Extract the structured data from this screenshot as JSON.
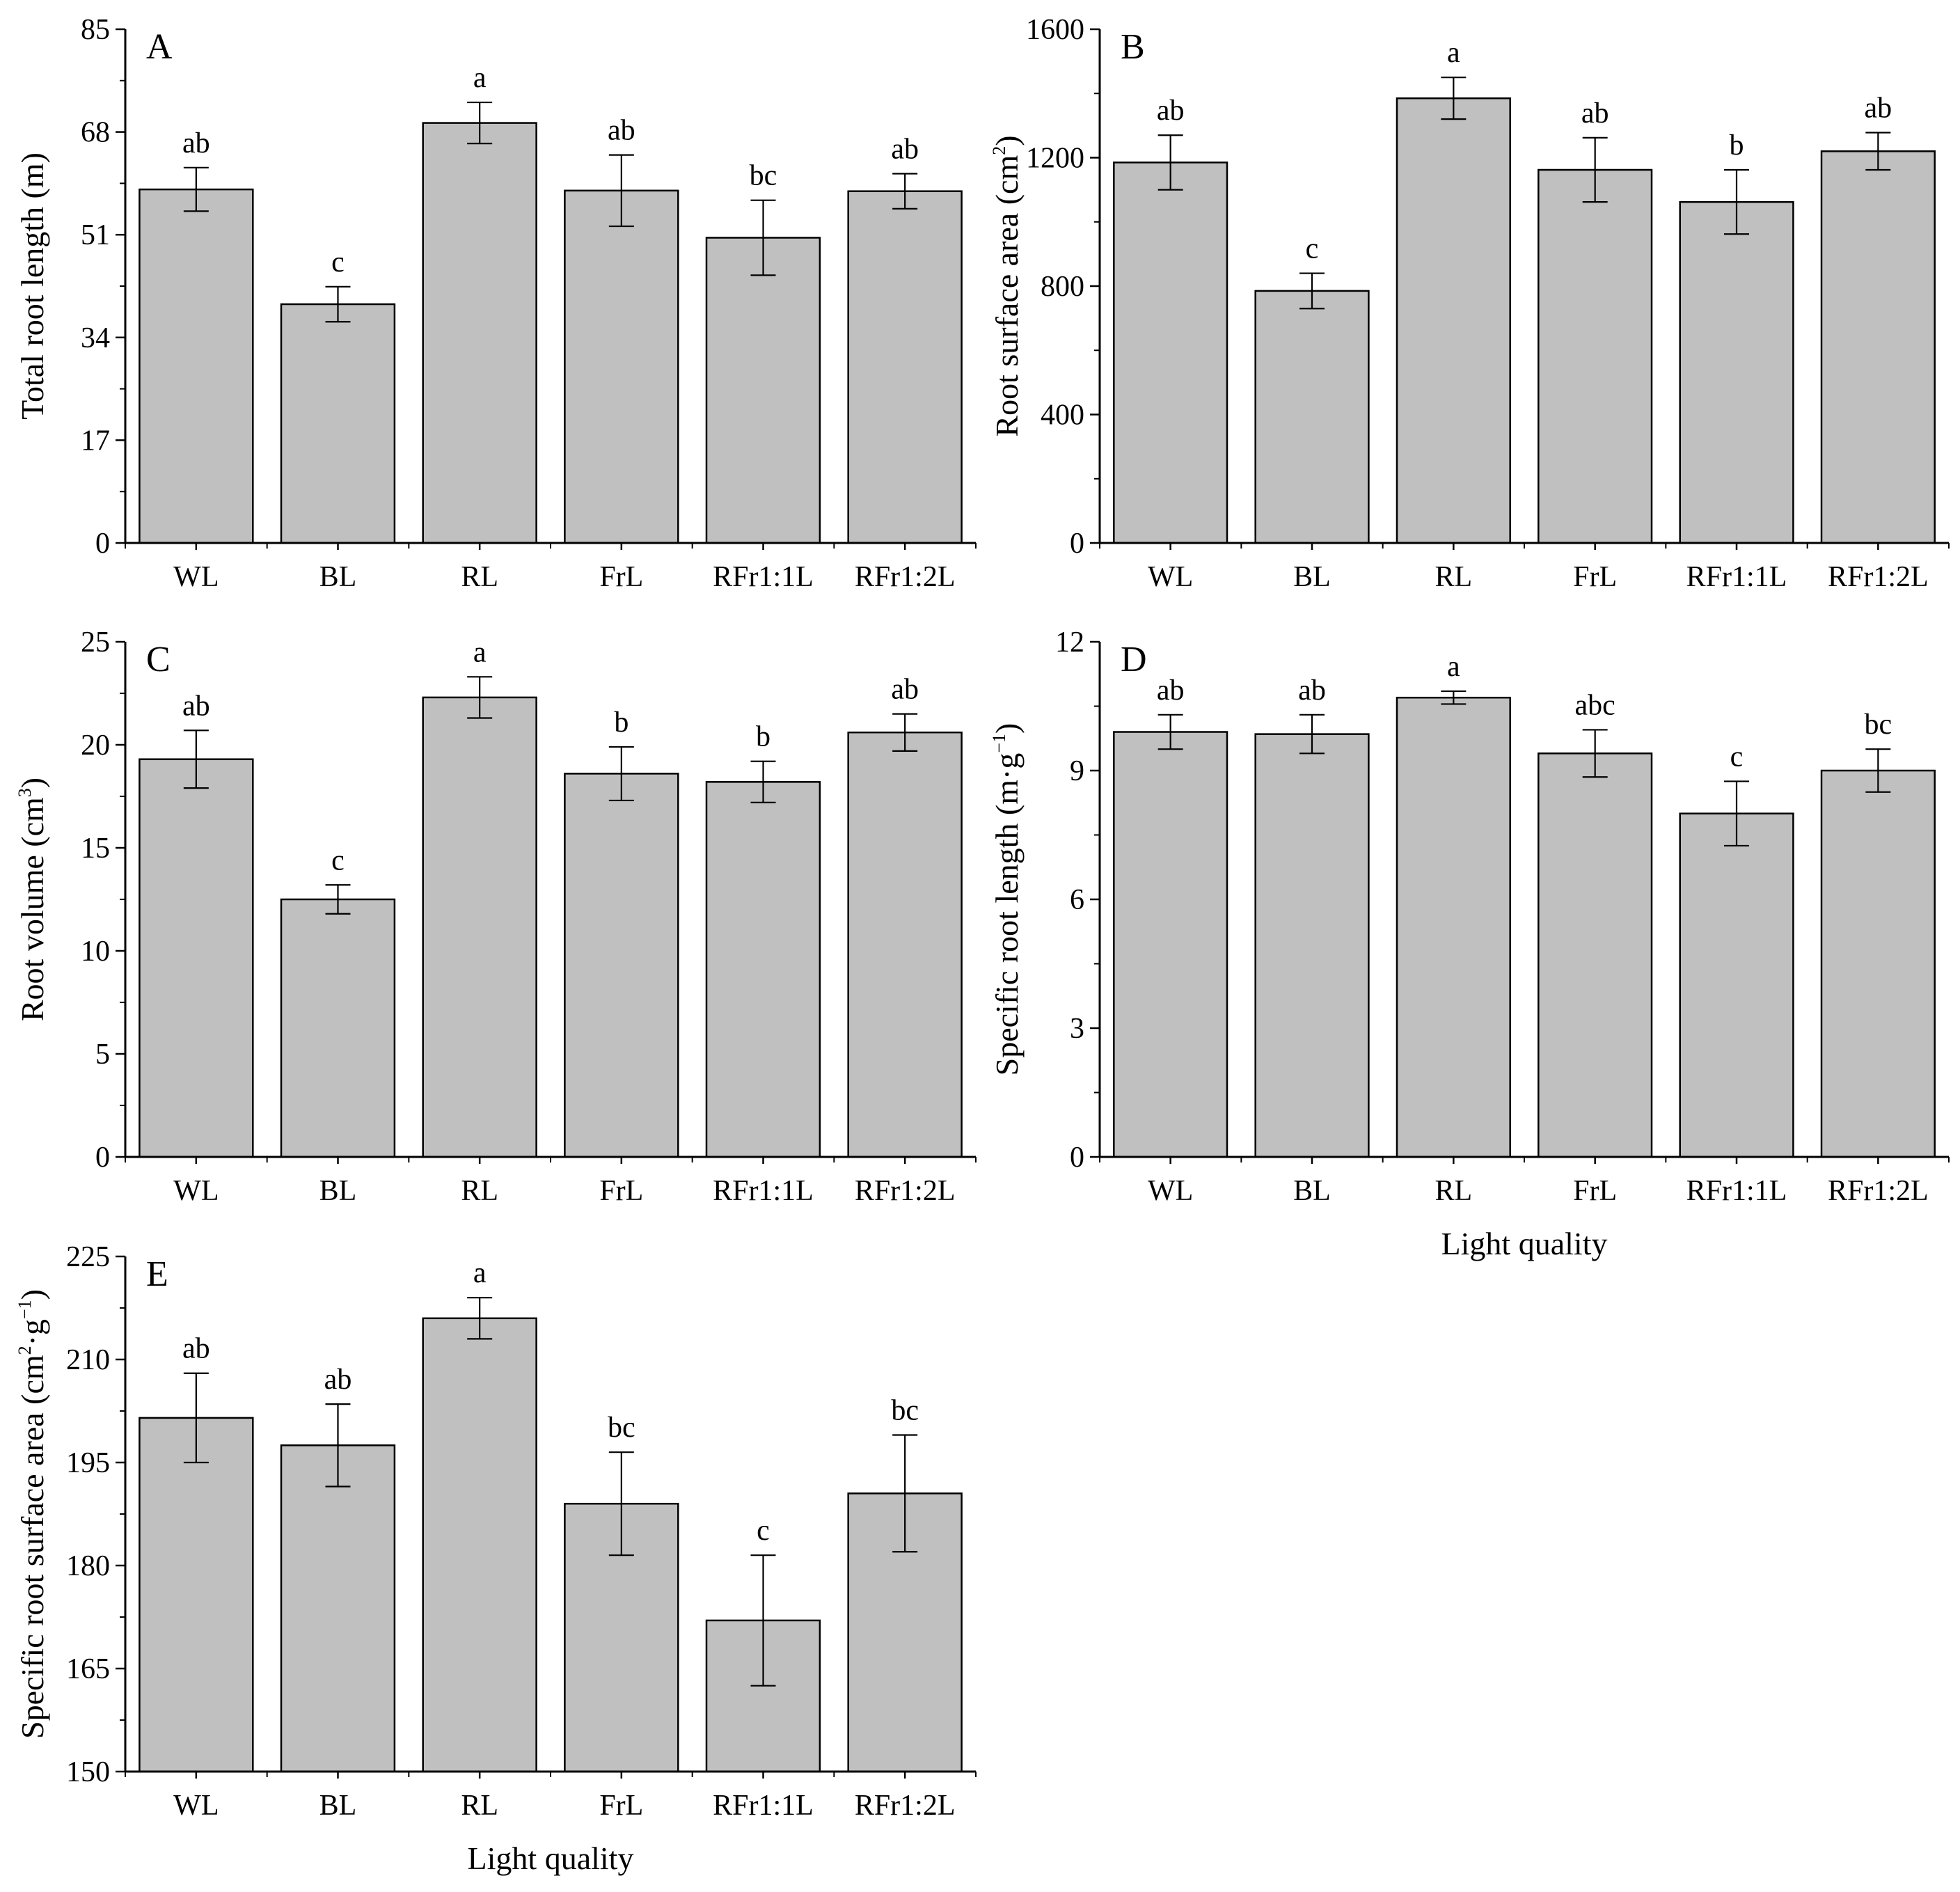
{
  "figure": {
    "x_label": "Light quality",
    "categories": [
      "WL",
      "BL",
      "RL",
      "FrL",
      "RFr1:1L",
      "RFr1:2L"
    ],
    "colors": {
      "bar_fill": "#c0c0c0",
      "bar_stroke": "#000000",
      "axis": "#000000"
    }
  },
  "chart_data": [
    {
      "type": "bar",
      "panel": "A",
      "title": "",
      "ylabel": "Total root length (m)",
      "ylabel_parts": [
        {
          "text": "Total root length (m)",
          "sup": false
        }
      ],
      "xlabel": "",
      "categories": [
        "WL",
        "BL",
        "RL",
        "FrL",
        "RFr1:1L",
        "RFr1:2L"
      ],
      "values": [
        58.5,
        39.5,
        69.5,
        58.3,
        50.5,
        58.2
      ],
      "errors": [
        3.6,
        2.9,
        3.4,
        5.9,
        6.2,
        2.9
      ],
      "significance": [
        "ab",
        "c",
        "a",
        "ab",
        "bc",
        "ab"
      ],
      "ylim": [
        0,
        85
      ],
      "yticks": [
        0,
        17,
        34,
        51,
        68,
        85
      ],
      "grid": false
    },
    {
      "type": "bar",
      "panel": "B",
      "title": "",
      "ylabel": "Root surface area (cm2)",
      "ylabel_parts": [
        {
          "text": "Root surface area (cm",
          "sup": false
        },
        {
          "text": "2",
          "sup": true
        },
        {
          "text": ")",
          "sup": false
        }
      ],
      "xlabel": "",
      "categories": [
        "WL",
        "BL",
        "RL",
        "FrL",
        "RFr1:1L",
        "RFr1:2L"
      ],
      "values": [
        1185,
        785,
        1385,
        1162,
        1062,
        1220
      ],
      "errors": [
        85,
        55,
        65,
        100,
        100,
        58
      ],
      "significance": [
        "ab",
        "c",
        "a",
        "ab",
        "b",
        "ab"
      ],
      "ylim": [
        0,
        1600
      ],
      "yticks": [
        0,
        400,
        800,
        1200,
        1600
      ],
      "grid": false
    },
    {
      "type": "bar",
      "panel": "C",
      "title": "",
      "ylabel": "Root volume (cm3)",
      "ylabel_parts": [
        {
          "text": "Root volume (cm",
          "sup": false
        },
        {
          "text": "3",
          "sup": true
        },
        {
          "text": ")",
          "sup": false
        }
      ],
      "xlabel": "",
      "categories": [
        "WL",
        "BL",
        "RL",
        "FrL",
        "RFr1:1L",
        "RFr1:2L"
      ],
      "values": [
        19.3,
        12.5,
        22.3,
        18.6,
        18.2,
        20.6
      ],
      "errors": [
        1.4,
        0.7,
        1.0,
        1.3,
        1.0,
        0.9
      ],
      "significance": [
        "ab",
        "c",
        "a",
        "b",
        "b",
        "ab"
      ],
      "ylim": [
        0,
        25
      ],
      "yticks": [
        0,
        5,
        10,
        15,
        20,
        25
      ],
      "grid": false
    },
    {
      "type": "bar",
      "panel": "D",
      "title": "",
      "ylabel": "Specific root length (m·g−1)",
      "ylabel_parts": [
        {
          "text": "Specific root length (m·g",
          "sup": false
        },
        {
          "text": "−1",
          "sup": true
        },
        {
          "text": ")",
          "sup": false
        }
      ],
      "xlabel": "Light quality",
      "categories": [
        "WL",
        "BL",
        "RL",
        "FrL",
        "RFr1:1L",
        "RFr1:2L"
      ],
      "values": [
        9.9,
        9.85,
        10.7,
        9.4,
        8.0,
        9.0
      ],
      "errors": [
        0.4,
        0.45,
        0.15,
        0.55,
        0.75,
        0.5
      ],
      "significance": [
        "ab",
        "ab",
        "a",
        "abc",
        "c",
        "bc"
      ],
      "ylim": [
        0,
        12
      ],
      "yticks": [
        0,
        3,
        6,
        9,
        12
      ],
      "grid": false
    },
    {
      "type": "bar",
      "panel": "E",
      "title": "",
      "ylabel": "Specific root surface area (cm2·g−1)",
      "ylabel_parts": [
        {
          "text": "Specific root surface area (cm",
          "sup": false
        },
        {
          "text": "2",
          "sup": true
        },
        {
          "text": "·g",
          "sup": false
        },
        {
          "text": "−1",
          "sup": true
        },
        {
          "text": ")",
          "sup": false
        }
      ],
      "xlabel": "Light quality",
      "categories": [
        "WL",
        "BL",
        "RL",
        "FrL",
        "RFr1:1L",
        "RFr1:2L"
      ],
      "values": [
        201.5,
        197.5,
        216.0,
        189.0,
        172.0,
        190.5
      ],
      "errors": [
        6.5,
        6.0,
        3.0,
        7.5,
        9.5,
        8.5
      ],
      "significance": [
        "ab",
        "ab",
        "a",
        "bc",
        "c",
        "bc"
      ],
      "ylim": [
        150,
        225
      ],
      "yticks": [
        150,
        165,
        180,
        195,
        210,
        225
      ],
      "grid": false
    }
  ]
}
